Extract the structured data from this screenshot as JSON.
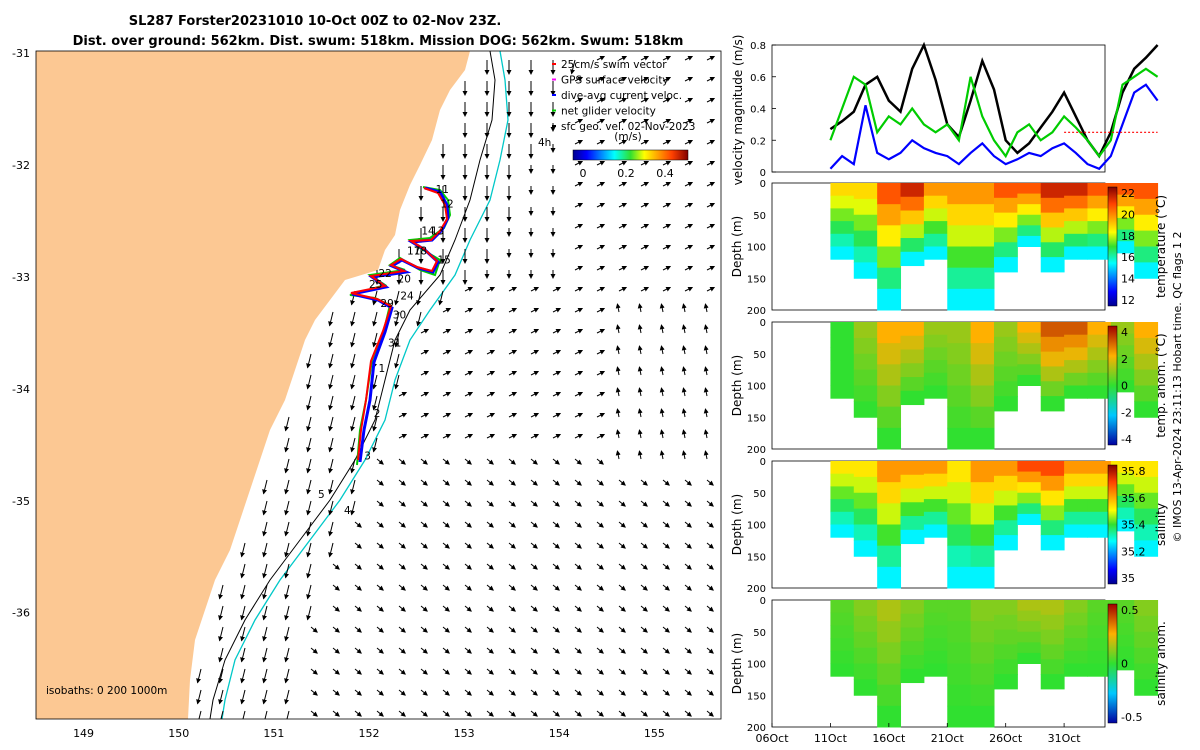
{
  "title": {
    "line1": "SL287 Forster20231010 10-Oct 00Z to 02-Nov 23Z.",
    "line2": "Dist. over ground: 562km. Dist. swum: 518km. Mission DOG: 562km. Swum: 518km"
  },
  "map": {
    "lat_ticks": [
      "-31",
      "-32",
      "-33",
      "-34",
      "-35",
      "-36"
    ],
    "lon_ticks": [
      "149",
      "150",
      "151",
      "152",
      "153",
      "154",
      "155"
    ],
    "xlim": [
      148.5,
      155.7
    ],
    "ylim": [
      -36.95,
      -30.98
    ],
    "land_color": "#fcc893",
    "legend": [
      {
        "label": "25cm/s swim vector",
        "color": "#ff0000"
      },
      {
        "label": "GPS surface velocity",
        "color": "#ff00ff"
      },
      {
        "label": "dive-avg current veloc.",
        "color": "#0000ff"
      },
      {
        "label": "net glider velocity",
        "color": "#00cc00"
      },
      {
        "label": "sfc geo. vel. 02-Nov-2023",
        "color": "#000000"
      }
    ],
    "colorbar_unit": "(m/s)",
    "colorbar_ticks": [
      "0",
      "0.2",
      "0.4"
    ],
    "marker_4h": "4h",
    "isobath_note": "isobaths: 0   200  1000m",
    "isobath_label_5": "5",
    "isobath_label_4": "4",
    "track_day_labels": [
      {
        "t": "11",
        "lon": 152.7,
        "lat": -32.25
      },
      {
        "t": "12",
        "lon": 152.75,
        "lat": -32.38
      },
      {
        "t": "13",
        "lon": 152.65,
        "lat": -32.62
      },
      {
        "t": "14",
        "lon": 152.55,
        "lat": -32.62
      },
      {
        "t": "17",
        "lon": 152.4,
        "lat": -32.8
      },
      {
        "t": "18",
        "lon": 152.47,
        "lat": -32.8
      },
      {
        "t": "15",
        "lon": 152.72,
        "lat": -32.88
      },
      {
        "t": "22",
        "lon": 152.1,
        "lat": -33.0
      },
      {
        "t": "20",
        "lon": 152.3,
        "lat": -33.05
      },
      {
        "t": "25",
        "lon": 152.0,
        "lat": -33.1
      },
      {
        "t": "24",
        "lon": 152.33,
        "lat": -33.2
      },
      {
        "t": "29",
        "lon": 152.12,
        "lat": -33.27
      },
      {
        "t": "30",
        "lon": 152.25,
        "lat": -33.37
      },
      {
        "t": "31",
        "lon": 152.2,
        "lat": -33.62
      },
      {
        "t": "1",
        "lon": 152.1,
        "lat": -33.85
      },
      {
        "t": "2",
        "lon": 152.05,
        "lat": -34.25
      },
      {
        "t": "3",
        "lon": 151.95,
        "lat": -34.63
      }
    ]
  },
  "velocity_panel": {
    "ylabel": "velocity magnitude (m/s)",
    "yticks": [
      "0",
      "0.2",
      "0.4",
      "0.6",
      "0.8"
    ]
  },
  "sections": [
    {
      "cb_label": "temperature (°C)",
      "cb_ticks": [
        "12",
        "14",
        "16",
        "18",
        "20",
        "22"
      ]
    },
    {
      "cb_label": "temp. anom. (°C)",
      "cb_ticks": [
        "-4",
        "-2",
        "0",
        "2",
        "4"
      ]
    },
    {
      "cb_label": "salinity",
      "cb_ticks": [
        "35",
        "35.2",
        "35.4",
        "35.6",
        "35.8"
      ]
    },
    {
      "cb_label": "salinity anom.",
      "cb_ticks": [
        "-0.5",
        "0",
        "0.5"
      ]
    }
  ],
  "depth_label": "Depth (m)",
  "depth_ticks": [
    "0",
    "50",
    "100",
    "150",
    "200"
  ],
  "date_ticks": [
    "06Oct",
    "11Oct",
    "16Oct",
    "21Oct",
    "26Oct",
    "31Oct"
  ],
  "footer": {
    "credit": "© IMOS 13-Apr-2024 23:11:13 Hobart time. QC flags 1  2"
  },
  "chart_data": [
    {
      "type": "line",
      "title": "velocity magnitude",
      "ylabel": "velocity magnitude (m/s)",
      "ylim": [
        0,
        0.8
      ],
      "x_unit": "days since 06-Oct",
      "series": [
        {
          "name": "sfc geo. vel.",
          "color": "#000000",
          "x": [
            5,
            6,
            7,
            8,
            9,
            10,
            11,
            12,
            13,
            14,
            15,
            16,
            17,
            18,
            19,
            20,
            21,
            22,
            23,
            24,
            25,
            26,
            27,
            28,
            29,
            30,
            31,
            32,
            33
          ],
          "y": [
            0.27,
            0.32,
            0.38,
            0.55,
            0.6,
            0.45,
            0.38,
            0.65,
            0.8,
            0.58,
            0.3,
            0.22,
            0.45,
            0.7,
            0.52,
            0.2,
            0.12,
            0.18,
            0.28,
            0.38,
            0.5,
            0.35,
            0.2,
            0.1,
            0.25,
            0.5,
            0.65,
            0.72,
            0.8
          ]
        },
        {
          "name": "net glider velocity",
          "color": "#00cc00",
          "x": [
            5,
            6,
            7,
            8,
            9,
            10,
            11,
            12,
            13,
            14,
            15,
            16,
            17,
            18,
            19,
            20,
            21,
            22,
            23,
            24,
            25,
            26,
            27,
            28,
            29,
            30,
            31,
            32,
            33
          ],
          "y": [
            0.2,
            0.4,
            0.6,
            0.55,
            0.25,
            0.35,
            0.3,
            0.4,
            0.3,
            0.25,
            0.3,
            0.2,
            0.6,
            0.35,
            0.2,
            0.1,
            0.25,
            0.3,
            0.2,
            0.25,
            0.35,
            0.28,
            0.2,
            0.1,
            0.2,
            0.55,
            0.6,
            0.65,
            0.6
          ]
        },
        {
          "name": "dive-avg current veloc.",
          "color": "#0000ff",
          "x": [
            5,
            6,
            7,
            8,
            9,
            10,
            11,
            12,
            13,
            14,
            15,
            16,
            17,
            18,
            19,
            20,
            21,
            22,
            23,
            24,
            25,
            26,
            27,
            28,
            29,
            30,
            31,
            32,
            33
          ],
          "y": [
            0.02,
            0.1,
            0.05,
            0.42,
            0.12,
            0.08,
            0.12,
            0.2,
            0.15,
            0.12,
            0.1,
            0.05,
            0.12,
            0.18,
            0.1,
            0.05,
            0.08,
            0.12,
            0.1,
            0.15,
            0.18,
            0.12,
            0.05,
            0.02,
            0.1,
            0.3,
            0.5,
            0.55,
            0.45
          ]
        },
        {
          "name": "25cm/s swim vector",
          "color": "#ff0000",
          "x": [
            25,
            33
          ],
          "y": [
            0.25,
            0.25
          ]
        }
      ]
    },
    {
      "type": "heatmap",
      "title": "temperature (°C)",
      "zlim": [
        11,
        23
      ],
      "ylim": [
        200,
        0
      ],
      "x": [
        5,
        7,
        9,
        11,
        13,
        15,
        17,
        19,
        21,
        23,
        25,
        27,
        29,
        31,
        33
      ],
      "surface_values": [
        19,
        19,
        21,
        22,
        20,
        20,
        20,
        21,
        21,
        22,
        22,
        21,
        21,
        21,
        21
      ],
      "bottom_depth": [
        120,
        150,
        200,
        130,
        120,
        200,
        200,
        140,
        100,
        140,
        120,
        120,
        110,
        150,
        200
      ]
    },
    {
      "type": "heatmap",
      "title": "temp. anom. (°C)",
      "zlim": [
        -4,
        4
      ],
      "ylim": [
        200,
        0
      ],
      "x": [
        5,
        7,
        9,
        11,
        13,
        15,
        17,
        19,
        21,
        23,
        25,
        27,
        29,
        31,
        33
      ],
      "surface_values": [
        0,
        1,
        2,
        2,
        1,
        1,
        2,
        1,
        2,
        3,
        3,
        2,
        1,
        2,
        1
      ],
      "bottom_depth": [
        120,
        150,
        200,
        130,
        120,
        200,
        200,
        140,
        100,
        140,
        120,
        120,
        110,
        150,
        200
      ]
    },
    {
      "type": "heatmap",
      "title": "salinity",
      "zlim": [
        34.85,
        35.85
      ],
      "ylim": [
        200,
        0
      ],
      "x": [
        5,
        7,
        9,
        11,
        13,
        15,
        17,
        19,
        21,
        23,
        25,
        27,
        29,
        31,
        33
      ],
      "surface_values": [
        35.5,
        35.5,
        35.6,
        35.6,
        35.6,
        35.5,
        35.6,
        35.6,
        35.7,
        35.7,
        35.6,
        35.6,
        35.5,
        35.5,
        35.5
      ],
      "bottom_depth": [
        120,
        150,
        200,
        130,
        120,
        200,
        200,
        140,
        100,
        140,
        120,
        120,
        110,
        150,
        200
      ]
    },
    {
      "type": "heatmap",
      "title": "salinity anom.",
      "zlim": [
        -0.5,
        0.5
      ],
      "ylim": [
        200,
        0
      ],
      "x": [
        5,
        7,
        9,
        11,
        13,
        15,
        17,
        19,
        21,
        23,
        25,
        27,
        29,
        31,
        33
      ],
      "surface_values": [
        0.05,
        0.1,
        0.15,
        0.1,
        0.05,
        0.05,
        0.1,
        0.1,
        0.15,
        0.15,
        0.1,
        0.05,
        0.05,
        0.1,
        0.05
      ],
      "bottom_depth": [
        120,
        150,
        200,
        130,
        120,
        200,
        200,
        140,
        100,
        140,
        120,
        120,
        110,
        150,
        200
      ]
    }
  ]
}
